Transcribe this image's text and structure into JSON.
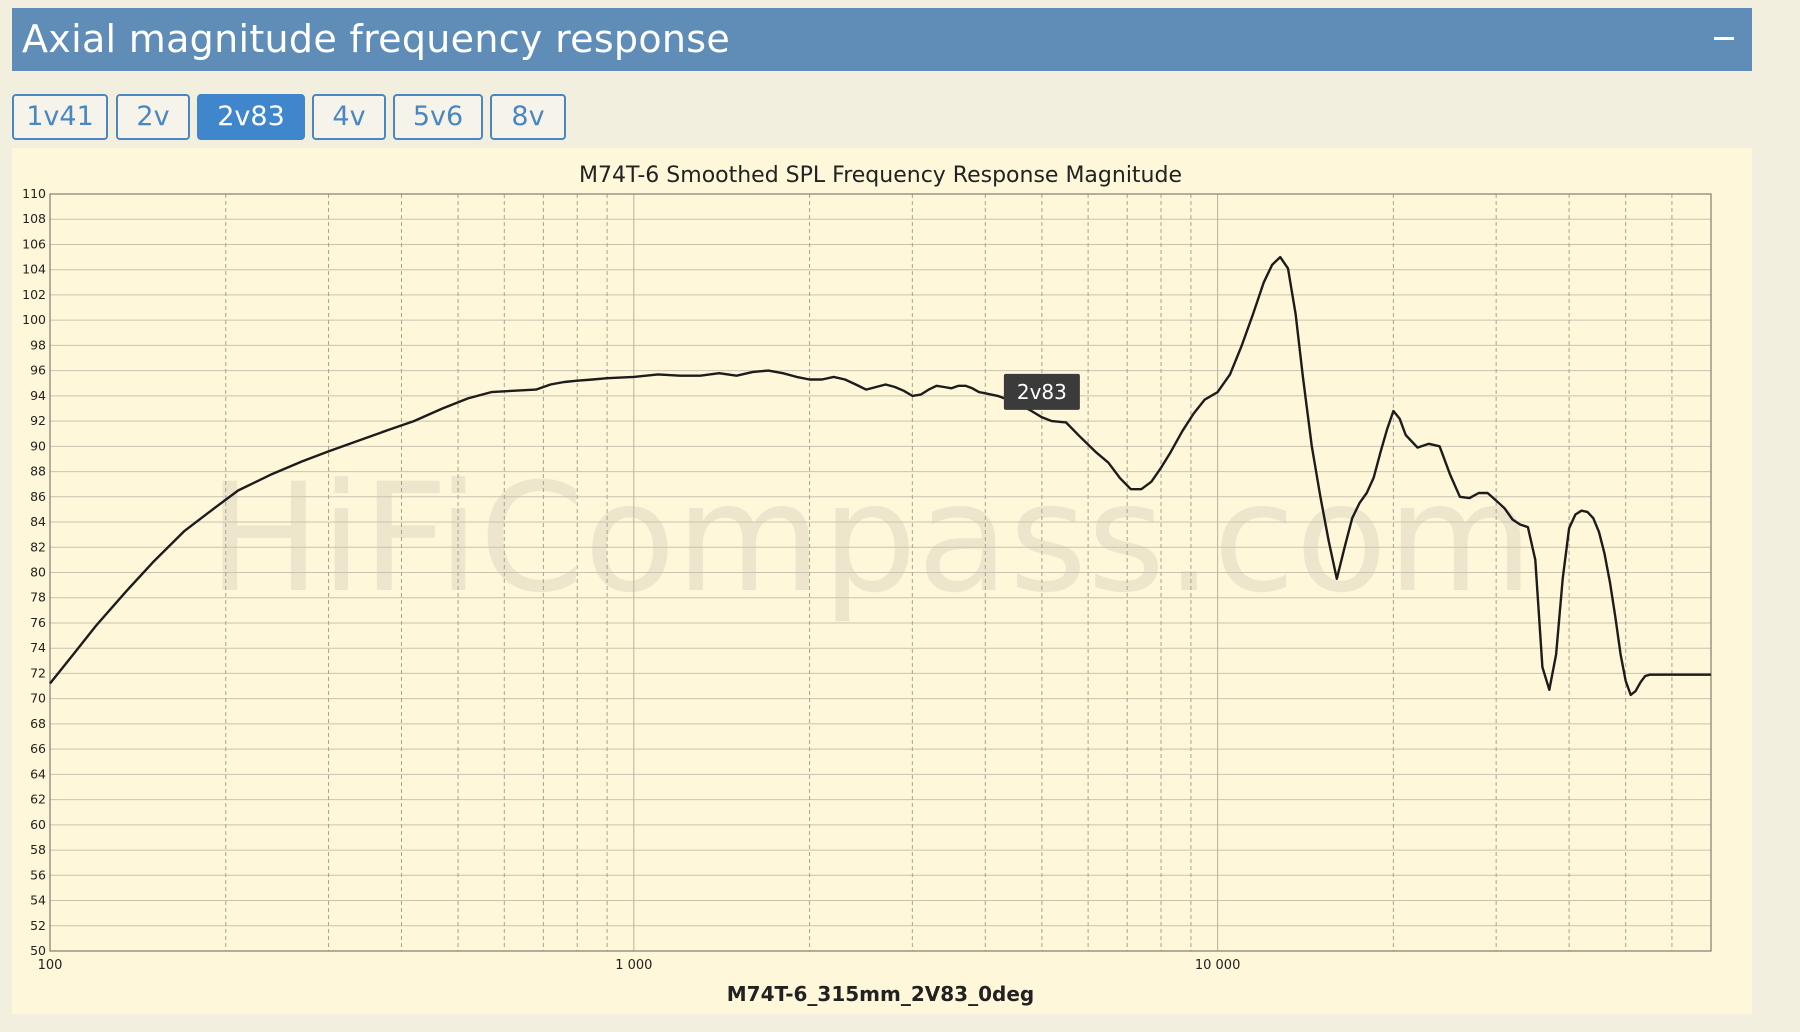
{
  "panel": {
    "title": "Axial magnitude frequency response",
    "collapse_icon": "minus-icon"
  },
  "tabs": [
    {
      "label": "1v41",
      "active": false
    },
    {
      "label": "2v",
      "active": false
    },
    {
      "label": "2v83",
      "active": true
    },
    {
      "label": "4v",
      "active": false
    },
    {
      "label": "5v6",
      "active": false
    },
    {
      "label": "8v",
      "active": false
    }
  ],
  "colors": {
    "header": "#5f8db7",
    "tab_active": "#3f86cc",
    "tab_border": "#4a86c2",
    "chart_background": "#fff7d9",
    "curve": "#1c1c1c",
    "tooltip_bg": "#3b3b3b"
  },
  "chart_data": {
    "type": "line",
    "title": "M74T-6 Smoothed SPL Frequency Response Magnitude",
    "xlabel": "M74T-6_315mm_2V83_0deg",
    "ylabel": "",
    "x_scale": "log",
    "xlim": [
      100,
      70000
    ],
    "ylim": [
      50,
      110
    ],
    "grid": true,
    "watermark": "HiFiCompass.com",
    "tooltip": "2v83",
    "x_tick_labels": [
      {
        "value": 100,
        "label": "100"
      },
      {
        "value": 1000,
        "label": "1 000"
      },
      {
        "value": 10000,
        "label": "10 000"
      }
    ],
    "y_ticks": [
      50,
      52,
      54,
      56,
      58,
      60,
      62,
      64,
      66,
      68,
      70,
      72,
      74,
      76,
      78,
      80,
      82,
      84,
      86,
      88,
      90,
      92,
      94,
      96,
      98,
      100,
      102,
      104,
      106,
      108,
      110
    ],
    "series": [
      {
        "x": [
          100,
          110,
          120,
          135,
          150,
          170,
          190,
          210,
          240,
          270,
          300,
          340,
          380,
          420,
          470,
          520,
          570,
          620,
          680,
          720,
          760,
          800,
          850,
          900,
          1000,
          1100,
          1200,
          1300,
          1400,
          1500,
          1600,
          1700,
          1800,
          1900,
          2000,
          2100,
          2200,
          2300,
          2400,
          2500,
          2600,
          2700,
          2800,
          2900,
          3000,
          3100,
          3200,
          3300,
          3400,
          3500,
          3600,
          3700,
          3800,
          3900,
          4000,
          4200,
          4500,
          4800,
          5000,
          5200,
          5500,
          5800,
          6200,
          6500,
          6800,
          7100,
          7400,
          7700,
          8000,
          8300,
          8700,
          9100,
          9500,
          10000,
          10500,
          11000,
          11500,
          12000,
          12400,
          12800,
          13200,
          13600,
          14000,
          14500,
          15000,
          15500,
          16000,
          16500,
          17000,
          17500,
          18000,
          18500,
          19000,
          19500,
          20000,
          20500,
          21000,
          22000,
          23000,
          24000,
          25000,
          26000,
          27000,
          28000,
          29000,
          30000,
          31000,
          32000,
          33000,
          34000,
          35000,
          36000,
          37000,
          38000,
          39000,
          40000,
          41000,
          42000,
          43000,
          44000,
          45000,
          46000,
          47000,
          48000,
          49000,
          50000,
          51000,
          52000,
          53000,
          54000,
          55000,
          56000,
          57000,
          58000,
          59000,
          60000,
          61000,
          62000,
          63000,
          64000,
          65000,
          66000,
          67000,
          68000,
          69000,
          70000
        ],
        "y": [
          71.2,
          73.6,
          75.8,
          78.5,
          80.8,
          83.3,
          85.0,
          86.5,
          87.8,
          88.8,
          89.6,
          90.5,
          91.3,
          92.0,
          93.0,
          93.8,
          94.3,
          94.4,
          94.5,
          94.9,
          95.1,
          95.2,
          95.3,
          95.4,
          95.5,
          95.7,
          95.6,
          95.6,
          95.8,
          95.6,
          95.9,
          96.0,
          95.8,
          95.5,
          95.3,
          95.3,
          95.5,
          95.3,
          94.9,
          94.5,
          94.7,
          94.9,
          94.7,
          94.4,
          94.0,
          94.1,
          94.5,
          94.8,
          94.7,
          94.6,
          94.8,
          94.8,
          94.6,
          94.3,
          94.2,
          94.0,
          93.5,
          92.8,
          92.3,
          92.0,
          91.9,
          90.8,
          89.5,
          88.7,
          87.5,
          86.6,
          86.6,
          87.2,
          88.3,
          89.5,
          91.2,
          92.6,
          93.7,
          94.3,
          95.7,
          98.0,
          100.5,
          103.0,
          104.4,
          105.0,
          104.1,
          100.5,
          95.5,
          90.0,
          86.0,
          82.5,
          79.5,
          82.0,
          84.3,
          85.5,
          86.3,
          87.5,
          89.5,
          91.3,
          92.8,
          92.2,
          90.9,
          89.9,
          90.2,
          90.0,
          87.8,
          86.0,
          85.9,
          86.3,
          86.3,
          85.7,
          85.1,
          84.2,
          83.8,
          83.6,
          81.0,
          72.5,
          70.7,
          73.5,
          79.5,
          83.5,
          84.6,
          84.9,
          84.8,
          84.3,
          83.2,
          81.5,
          79.2,
          76.5,
          73.5,
          71.4,
          70.3,
          70.6,
          71.3,
          71.8,
          71.9,
          71.9,
          71.9,
          71.9,
          71.9,
          71.9,
          71.9,
          71.9,
          71.9,
          71.9,
          71.9,
          71.9,
          71.9,
          71.9,
          71.9,
          71.9
        ]
      }
    ]
  }
}
